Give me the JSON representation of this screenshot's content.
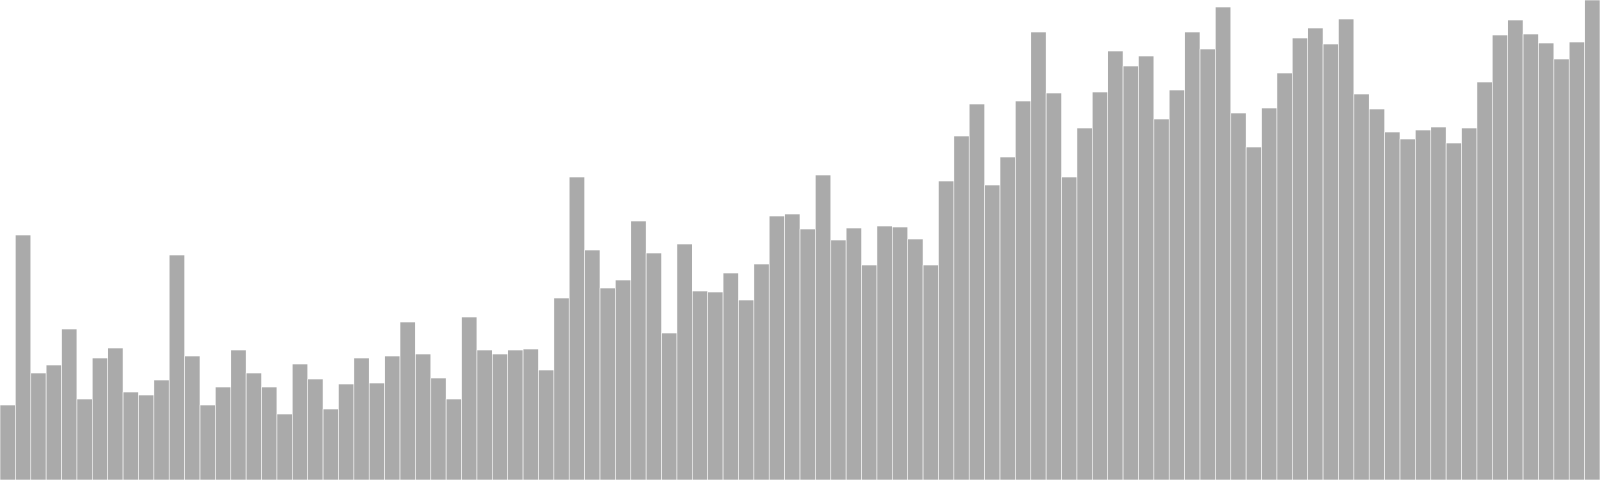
{
  "chart_data": {
    "type": "bar",
    "title": "",
    "xlabel": "",
    "ylabel": "",
    "ylim": [
      0,
      480
    ],
    "grid": false,
    "legend": "none",
    "bar_color": "#aaaaaa",
    "bar_edge_color": "#ffffff",
    "values": [
      75,
      245,
      107,
      115,
      151,
      81,
      122,
      132,
      88,
      85,
      100,
      225,
      124,
      75,
      93,
      130,
      107,
      93,
      66,
      116,
      101,
      71,
      96,
      122,
      97,
      124,
      158,
      126,
      102,
      81,
      163,
      130,
      126,
      130,
      131,
      110,
      182,
      303,
      230,
      192,
      200,
      259,
      227,
      147,
      236,
      189,
      188,
      207,
      180,
      216,
      264,
      266,
      251,
      305,
      240,
      252,
      215,
      254,
      253,
      241,
      215,
      299,
      344,
      376,
      295,
      323,
      379,
      448,
      387,
      303,
      352,
      388,
      429,
      414,
      424,
      361,
      390,
      448,
      431,
      473,
      367,
      333,
      372,
      407,
      442,
      452,
      436,
      461,
      386,
      371,
      348,
      341,
      350,
      353,
      337,
      352,
      398,
      445,
      460,
      446,
      437,
      421,
      438,
      480
    ]
  }
}
